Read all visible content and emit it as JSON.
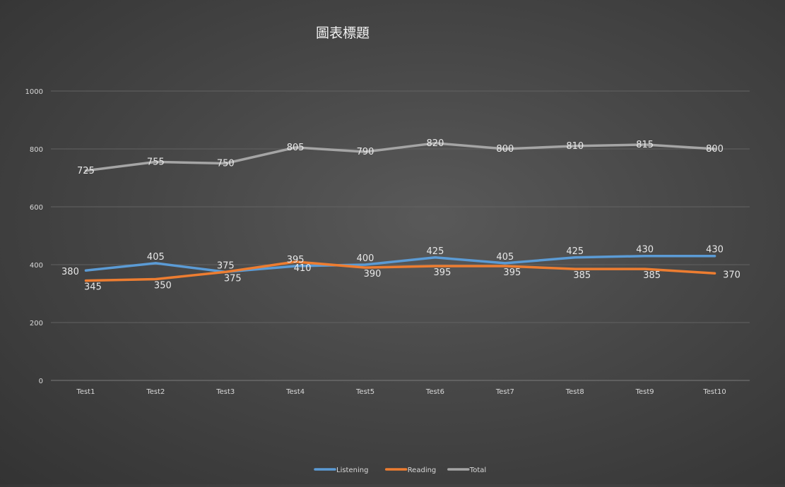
{
  "chart_data": {
    "type": "line",
    "title": "圖表標題",
    "xlabel": "",
    "ylabel": "",
    "ylim": [
      0,
      1000
    ],
    "yticks": [
      0,
      200,
      400,
      600,
      800,
      1000
    ],
    "grid": true,
    "legend": "bottom",
    "categories": [
      "Test1",
      "Test2",
      "Test3",
      "Test4",
      "Test5",
      "Test6",
      "Test7",
      "Test8",
      "Test9",
      "Test10"
    ],
    "series": [
      {
        "name": "Listening",
        "color": "#5b9bd5",
        "values": [
          380,
          405,
          375,
          395,
          400,
          425,
          405,
          425,
          430,
          430
        ]
      },
      {
        "name": "Reading",
        "color": "#ed7d31",
        "values": [
          345,
          350,
          375,
          410,
          390,
          395,
          395,
          385,
          385,
          370
        ]
      },
      {
        "name": "Total",
        "color": "#a5a5a5",
        "values": [
          725,
          755,
          750,
          805,
          790,
          820,
          800,
          810,
          815,
          800
        ]
      }
    ]
  }
}
